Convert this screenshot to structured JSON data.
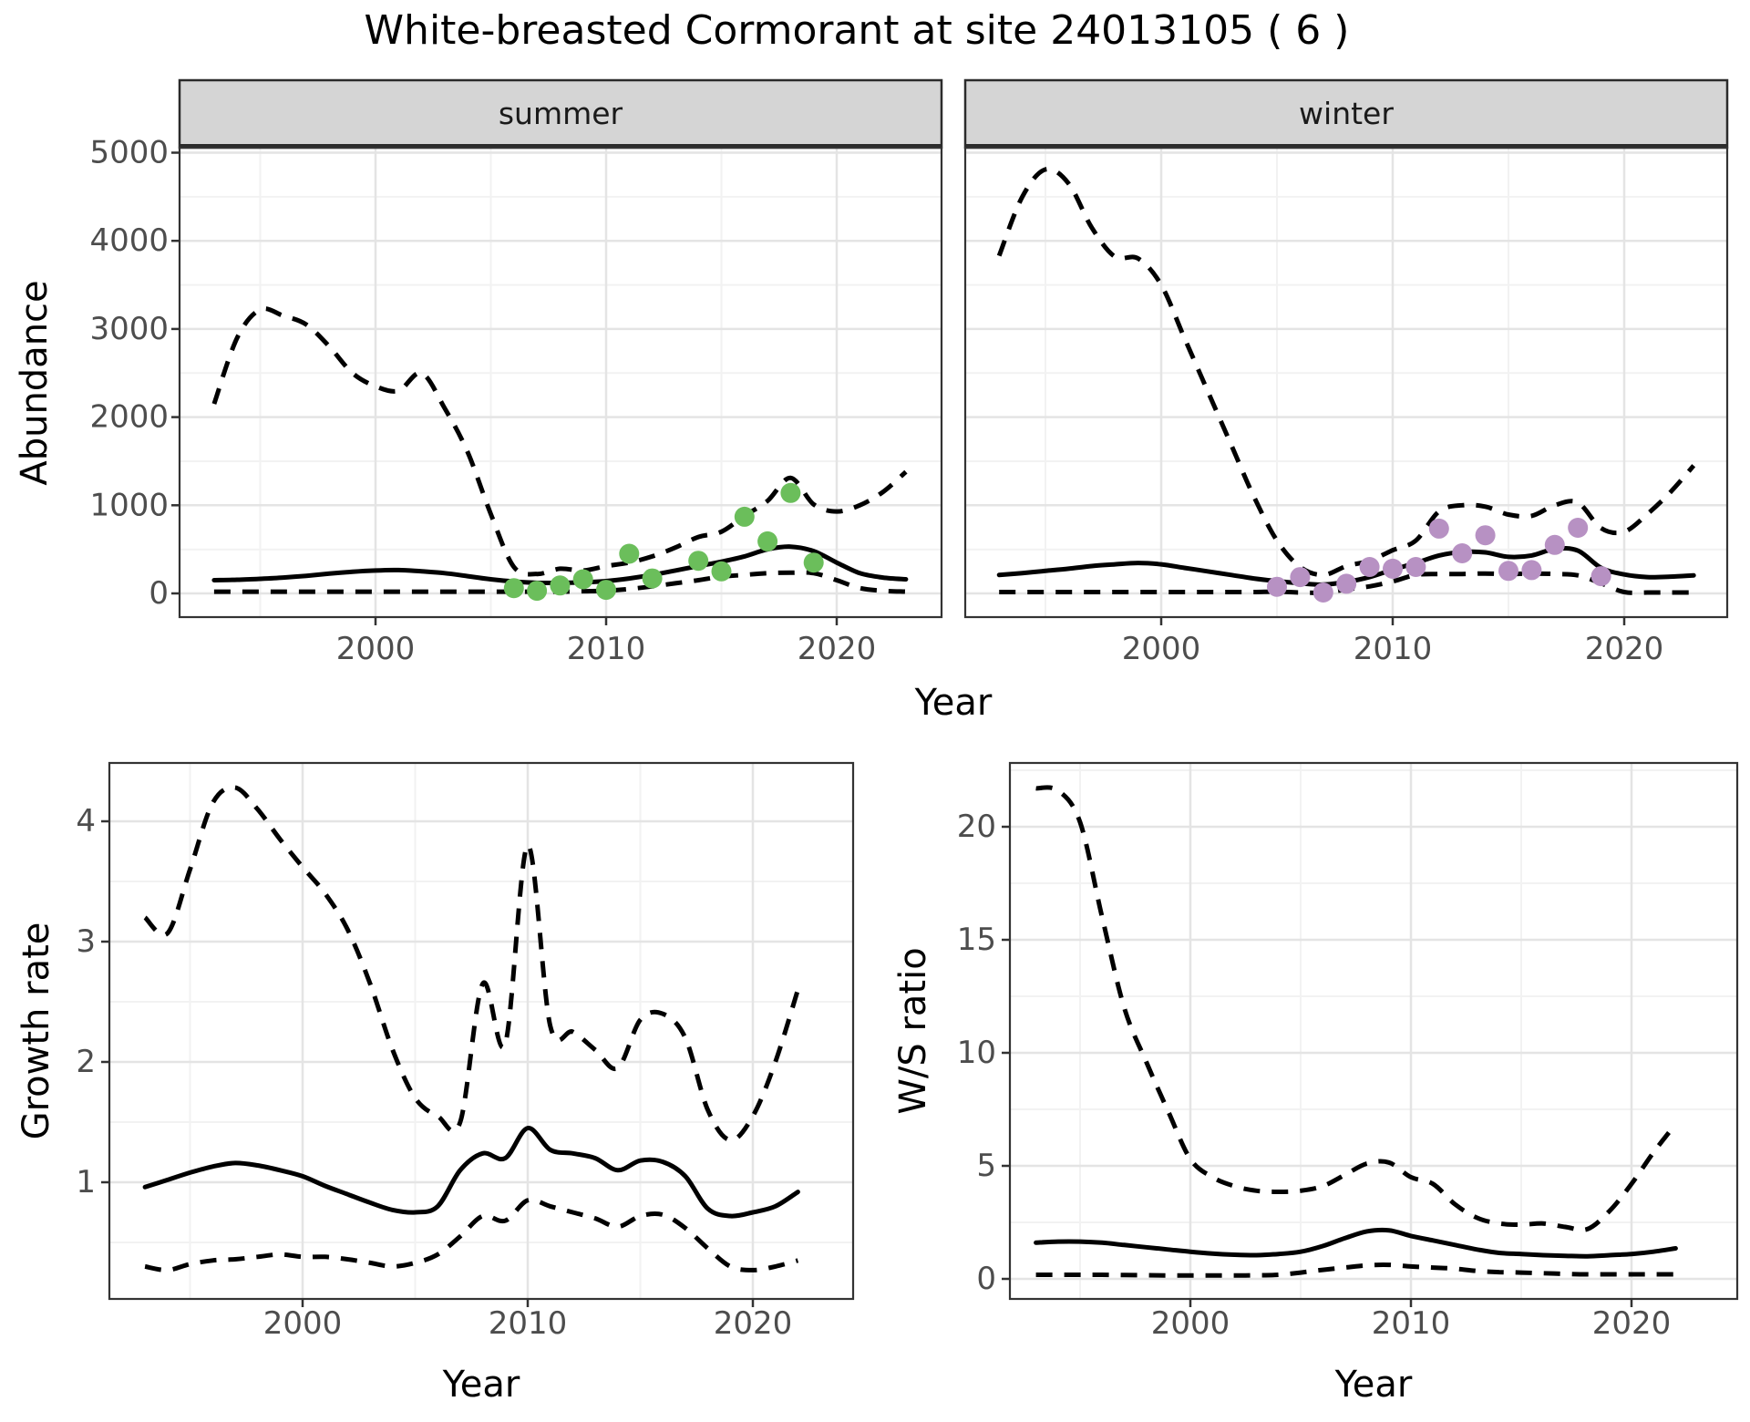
{
  "title": "White-breasted Cormorant at site 24013105 ( 6 )",
  "facets": {
    "summer_label": "summer",
    "winter_label": "winter"
  },
  "axis_titles": {
    "abundance": "Abundance",
    "year_top": "Year",
    "growth": "Growth rate",
    "ws": "W/S ratio",
    "year_growth": "Year",
    "year_ws": "Year"
  },
  "colors": {
    "line": "#000000",
    "observed_summer": "#6BBE5B",
    "observed_winter": "#B791C3",
    "strip_bg": "#D5D5D5",
    "strip_border": "#2B2B2B",
    "panel_border": "#333333",
    "grid_major": "#E4E4E4",
    "grid_minor": "#F2F2F2",
    "tick_mark": "#333333",
    "tick_text": "#4D4D4D"
  },
  "chart_data": [
    {
      "panel": "summer",
      "type": "line",
      "facet_label": "summer",
      "xlabel": "Year",
      "ylabel": "Abundance",
      "xlim": [
        1991.5,
        2024.5
      ],
      "ylim": [
        0,
        5000
      ],
      "x": [
        1993,
        1994,
        1995,
        1996,
        1997,
        1998,
        1999,
        2000,
        2001,
        2002,
        2003,
        2004,
        2005,
        2006,
        2007,
        2008,
        2009,
        2010,
        2011,
        2012,
        2013,
        2014,
        2015,
        2016,
        2017,
        2018,
        2019,
        2020,
        2021,
        2022,
        2023
      ],
      "series": [
        {
          "name": "upper_95ci",
          "style": "dashed",
          "values": [
            2150,
            2900,
            3220,
            3150,
            3050,
            2800,
            2500,
            2350,
            2300,
            2500,
            2100,
            1600,
            900,
            300,
            220,
            280,
            260,
            310,
            350,
            420,
            520,
            640,
            700,
            880,
            1050,
            1310,
            1010,
            930,
            1000,
            1150,
            1380
          ]
        },
        {
          "name": "estimate",
          "style": "solid",
          "values": [
            150,
            155,
            165,
            180,
            200,
            225,
            245,
            260,
            265,
            250,
            230,
            195,
            160,
            135,
            120,
            120,
            125,
            140,
            170,
            210,
            260,
            310,
            360,
            420,
            500,
            530,
            480,
            350,
            230,
            180,
            160
          ]
        },
        {
          "name": "lower_95ci",
          "style": "dashed",
          "values": [
            20,
            20,
            20,
            20,
            20,
            20,
            20,
            20,
            20,
            20,
            20,
            20,
            20,
            20,
            20,
            20,
            25,
            30,
            50,
            80,
            115,
            150,
            190,
            210,
            230,
            235,
            230,
            150,
            60,
            30,
            20
          ]
        }
      ],
      "points": {
        "name": "observed_counts",
        "color_key": "observed_summer",
        "x": [
          2006,
          2007,
          2008,
          2009,
          2010,
          2011,
          2012,
          2014,
          2015,
          2016,
          2017,
          2018,
          2019
        ],
        "values": [
          60,
          30,
          90,
          160,
          40,
          450,
          170,
          370,
          250,
          870,
          590,
          1140,
          350
        ]
      },
      "x_ticks": {
        "values": [
          2000,
          2010,
          2020
        ],
        "labels": [
          "2000",
          "2010",
          "2020"
        ],
        "minor": [
          1995,
          2005,
          2015
        ]
      },
      "y_ticks": {
        "values": [
          0,
          1000,
          2000,
          3000,
          4000,
          5000
        ],
        "labels": [
          "0",
          "1000",
          "2000",
          "3000",
          "4000",
          "5000"
        ],
        "minor": [
          500,
          1500,
          2500,
          3500,
          4500
        ]
      }
    },
    {
      "panel": "winter",
      "type": "line",
      "facet_label": "winter",
      "xlabel": "Year",
      "ylabel": "Abundance",
      "xlim": [
        1991.5,
        2024.5
      ],
      "ylim": [
        0,
        5000
      ],
      "x": [
        1993,
        1994,
        1995,
        1996,
        1997,
        1998,
        1999,
        2000,
        2001,
        2002,
        2003,
        2004,
        2005,
        2006,
        2007,
        2008,
        2009,
        2010,
        2011,
        2012,
        2013,
        2014,
        2015,
        2016,
        2017,
        2018,
        2019,
        2020,
        2021,
        2022,
        2023
      ],
      "series": [
        {
          "name": "upper_95ci",
          "style": "dashed",
          "values": [
            3830,
            4500,
            4810,
            4650,
            4150,
            3820,
            3800,
            3500,
            2900,
            2300,
            1700,
            1100,
            600,
            300,
            210,
            310,
            370,
            490,
            600,
            930,
            1000,
            985,
            895,
            880,
            1000,
            1030,
            740,
            700,
            900,
            1150,
            1450
          ]
        },
        {
          "name": "estimate",
          "style": "solid",
          "values": [
            210,
            230,
            255,
            280,
            310,
            330,
            345,
            330,
            290,
            250,
            210,
            170,
            140,
            115,
            100,
            130,
            185,
            270,
            345,
            430,
            470,
            465,
            415,
            430,
            505,
            485,
            290,
            215,
            185,
            190,
            205
          ]
        },
        {
          "name": "lower_95ci",
          "style": "dashed",
          "values": [
            15,
            15,
            15,
            15,
            15,
            15,
            15,
            15,
            15,
            15,
            15,
            15,
            20,
            10,
            10,
            45,
            80,
            135,
            210,
            220,
            220,
            225,
            220,
            225,
            220,
            205,
            115,
            15,
            10,
            10,
            10
          ]
        }
      ],
      "points": {
        "name": "observed_counts",
        "color_key": "observed_winter",
        "x": [
          2005,
          2006,
          2007,
          2008,
          2009,
          2010,
          2011,
          2012,
          2013,
          2014,
          2015,
          2016,
          2017,
          2018,
          2019
        ],
        "values": [
          75,
          185,
          10,
          110,
          300,
          280,
          300,
          735,
          455,
          660,
          255,
          265,
          550,
          745,
          195
        ]
      },
      "x_ticks": {
        "values": [
          2000,
          2010,
          2020
        ],
        "labels": [
          "2000",
          "2010",
          "2020"
        ],
        "minor": [
          1995,
          2005,
          2015
        ]
      },
      "y_ticks": {
        "values": [
          0,
          1000,
          2000,
          3000,
          4000,
          5000
        ],
        "labels": [
          "0",
          "1000",
          "2000",
          "3000",
          "4000",
          "5000"
        ],
        "minor": [
          500,
          1500,
          2500,
          3500,
          4500
        ]
      }
    },
    {
      "panel": "growth",
      "type": "line",
      "facet_label": null,
      "xlabel": "Year",
      "ylabel": "Growth rate",
      "xlim": [
        1991.4,
        2024.5
      ],
      "ylim": [
        0,
        4.5
      ],
      "x": [
        1993,
        1994,
        1995,
        1996,
        1997,
        1998,
        1999,
        2000,
        2001,
        2002,
        2003,
        2004,
        2005,
        2006,
        2007,
        2008,
        2009,
        2010,
        2011,
        2012,
        2013,
        2014,
        2015,
        2016,
        2017,
        2018,
        2019,
        2020,
        2021,
        2022
      ],
      "series": [
        {
          "name": "upper_95ci",
          "style": "dashed",
          "values": [
            3.2,
            3.07,
            3.6,
            4.15,
            4.28,
            4.1,
            3.85,
            3.62,
            3.4,
            3.1,
            2.65,
            2.1,
            1.7,
            1.55,
            1.5,
            2.65,
            2.15,
            3.8,
            2.3,
            2.25,
            2.1,
            1.95,
            2.35,
            2.4,
            2.2,
            1.6,
            1.35,
            1.55,
            2.0,
            2.6
          ]
        },
        {
          "name": "estimate",
          "style": "solid",
          "values": [
            0.96,
            1.02,
            1.08,
            1.13,
            1.16,
            1.14,
            1.1,
            1.05,
            0.97,
            0.9,
            0.83,
            0.77,
            0.75,
            0.8,
            1.1,
            1.24,
            1.2,
            1.45,
            1.27,
            1.24,
            1.2,
            1.1,
            1.18,
            1.17,
            1.05,
            0.78,
            0.72,
            0.75,
            0.8,
            0.92
          ]
        },
        {
          "name": "lower_95ci",
          "style": "dashed",
          "values": [
            0.3,
            0.27,
            0.32,
            0.35,
            0.36,
            0.38,
            0.4,
            0.38,
            0.38,
            0.36,
            0.33,
            0.3,
            0.33,
            0.4,
            0.55,
            0.72,
            0.68,
            0.85,
            0.8,
            0.75,
            0.7,
            0.63,
            0.72,
            0.73,
            0.62,
            0.45,
            0.3,
            0.27,
            0.3,
            0.35
          ]
        }
      ],
      "points": null,
      "x_ticks": {
        "values": [
          2000,
          2010,
          2020
        ],
        "labels": [
          "2000",
          "2010",
          "2020"
        ],
        "minor": [
          1995,
          2005,
          2015
        ]
      },
      "y_ticks": {
        "values": [
          1,
          2,
          3,
          4
        ],
        "labels": [
          "1",
          "2",
          "3",
          "4"
        ],
        "minor": [
          0.5,
          1.5,
          2.5,
          3.5
        ]
      }
    },
    {
      "panel": "ws",
      "type": "line",
      "facet_label": null,
      "xlabel": "Year",
      "ylabel": "W/S ratio",
      "xlim": [
        1991.8,
        2024.8
      ],
      "ylim": [
        0,
        22
      ],
      "x": [
        1993,
        1994,
        1995,
        1996,
        1997,
        1998,
        1999,
        2000,
        2001,
        2002,
        2003,
        2004,
        2005,
        2006,
        2007,
        2008,
        2009,
        2010,
        2011,
        2012,
        2013,
        2014,
        2015,
        2016,
        2017,
        2018,
        2019,
        2020,
        2021,
        2022
      ],
      "series": [
        {
          "name": "upper_95ci",
          "style": "dashed",
          "values": [
            21.7,
            21.6,
            20.2,
            16.0,
            12.0,
            9.6,
            7.4,
            5.3,
            4.5,
            4.1,
            3.9,
            3.85,
            3.9,
            4.1,
            4.6,
            5.1,
            5.15,
            4.5,
            4.2,
            3.3,
            2.7,
            2.45,
            2.4,
            2.45,
            2.3,
            2.2,
            3.0,
            4.2,
            5.6,
            6.85
          ]
        },
        {
          "name": "estimate",
          "style": "solid",
          "values": [
            1.6,
            1.65,
            1.65,
            1.6,
            1.5,
            1.4,
            1.3,
            1.2,
            1.12,
            1.07,
            1.05,
            1.1,
            1.2,
            1.45,
            1.8,
            2.1,
            2.15,
            1.9,
            1.7,
            1.5,
            1.3,
            1.15,
            1.1,
            1.05,
            1.02,
            1.0,
            1.05,
            1.1,
            1.2,
            1.35
          ]
        },
        {
          "name": "lower_95ci",
          "style": "dashed",
          "values": [
            0.18,
            0.18,
            0.18,
            0.18,
            0.17,
            0.16,
            0.15,
            0.15,
            0.15,
            0.15,
            0.16,
            0.18,
            0.28,
            0.4,
            0.5,
            0.6,
            0.62,
            0.55,
            0.5,
            0.45,
            0.35,
            0.3,
            0.28,
            0.25,
            0.22,
            0.2,
            0.2,
            0.2,
            0.2,
            0.2
          ]
        }
      ],
      "points": null,
      "x_ticks": {
        "values": [
          2000,
          2010,
          2020
        ],
        "labels": [
          "2000",
          "2010",
          "2020"
        ],
        "minor": [
          1995,
          2005,
          2015
        ]
      },
      "y_ticks": {
        "values": [
          0,
          5,
          10,
          15,
          20
        ],
        "labels": [
          "0",
          "5",
          "10",
          "15",
          "20"
        ],
        "minor": [
          2.5,
          7.5,
          12.5,
          17.5,
          22.5
        ]
      }
    }
  ]
}
